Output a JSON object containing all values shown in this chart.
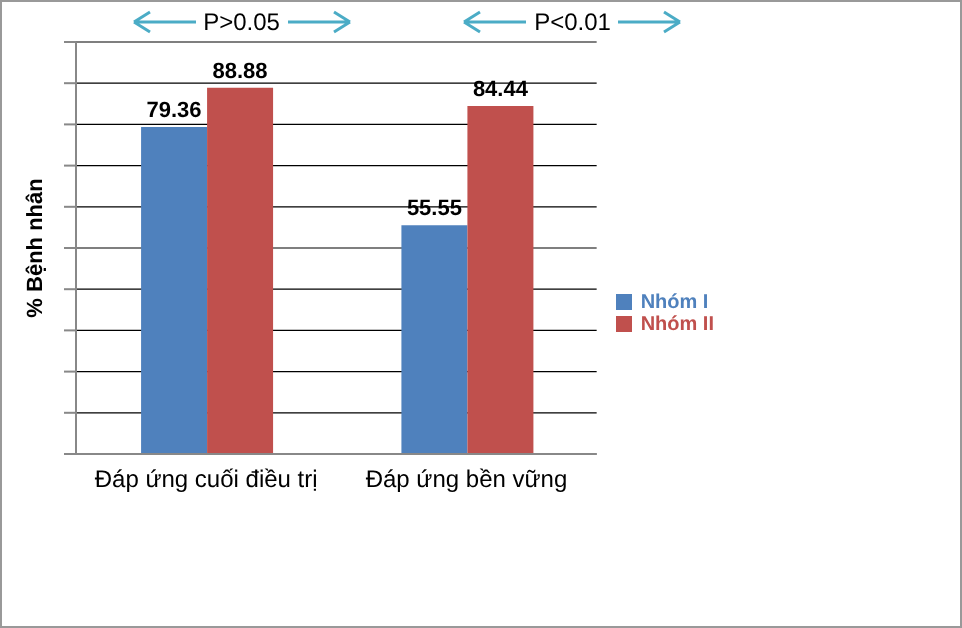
{
  "chart_data": {
    "type": "bar",
    "ylabel": "% Bệnh nhân",
    "categories": [
      "Đáp ứng cuối điều trị",
      "Đáp ứng bền vững"
    ],
    "series": [
      {
        "name": "Nhóm I",
        "color": "#4f81bd",
        "values": [
          79.36,
          55.55
        ]
      },
      {
        "name": "Nhóm II",
        "color": "#c0504d",
        "values": [
          88.88,
          84.44
        ]
      }
    ],
    "ylim": [
      0,
      100
    ],
    "yticks": [
      {
        "value": 0,
        "label": null
      },
      {
        "value": 10,
        "label": null
      },
      {
        "value": 20,
        "label": null
      },
      {
        "value": 30,
        "label": null
      },
      {
        "value": 40,
        "label": null
      },
      {
        "value": 50,
        "label": null
      },
      {
        "value": 60,
        "label": null
      },
      {
        "value": 70,
        "label": null
      },
      {
        "value": 80,
        "label": null
      },
      {
        "value": 90,
        "label": null
      },
      {
        "value": 100,
        "label": null
      }
    ],
    "grid": "y",
    "legend": "right",
    "data_labels": true,
    "annotations": [
      "P>0.05",
      "P<0.01"
    ]
  }
}
